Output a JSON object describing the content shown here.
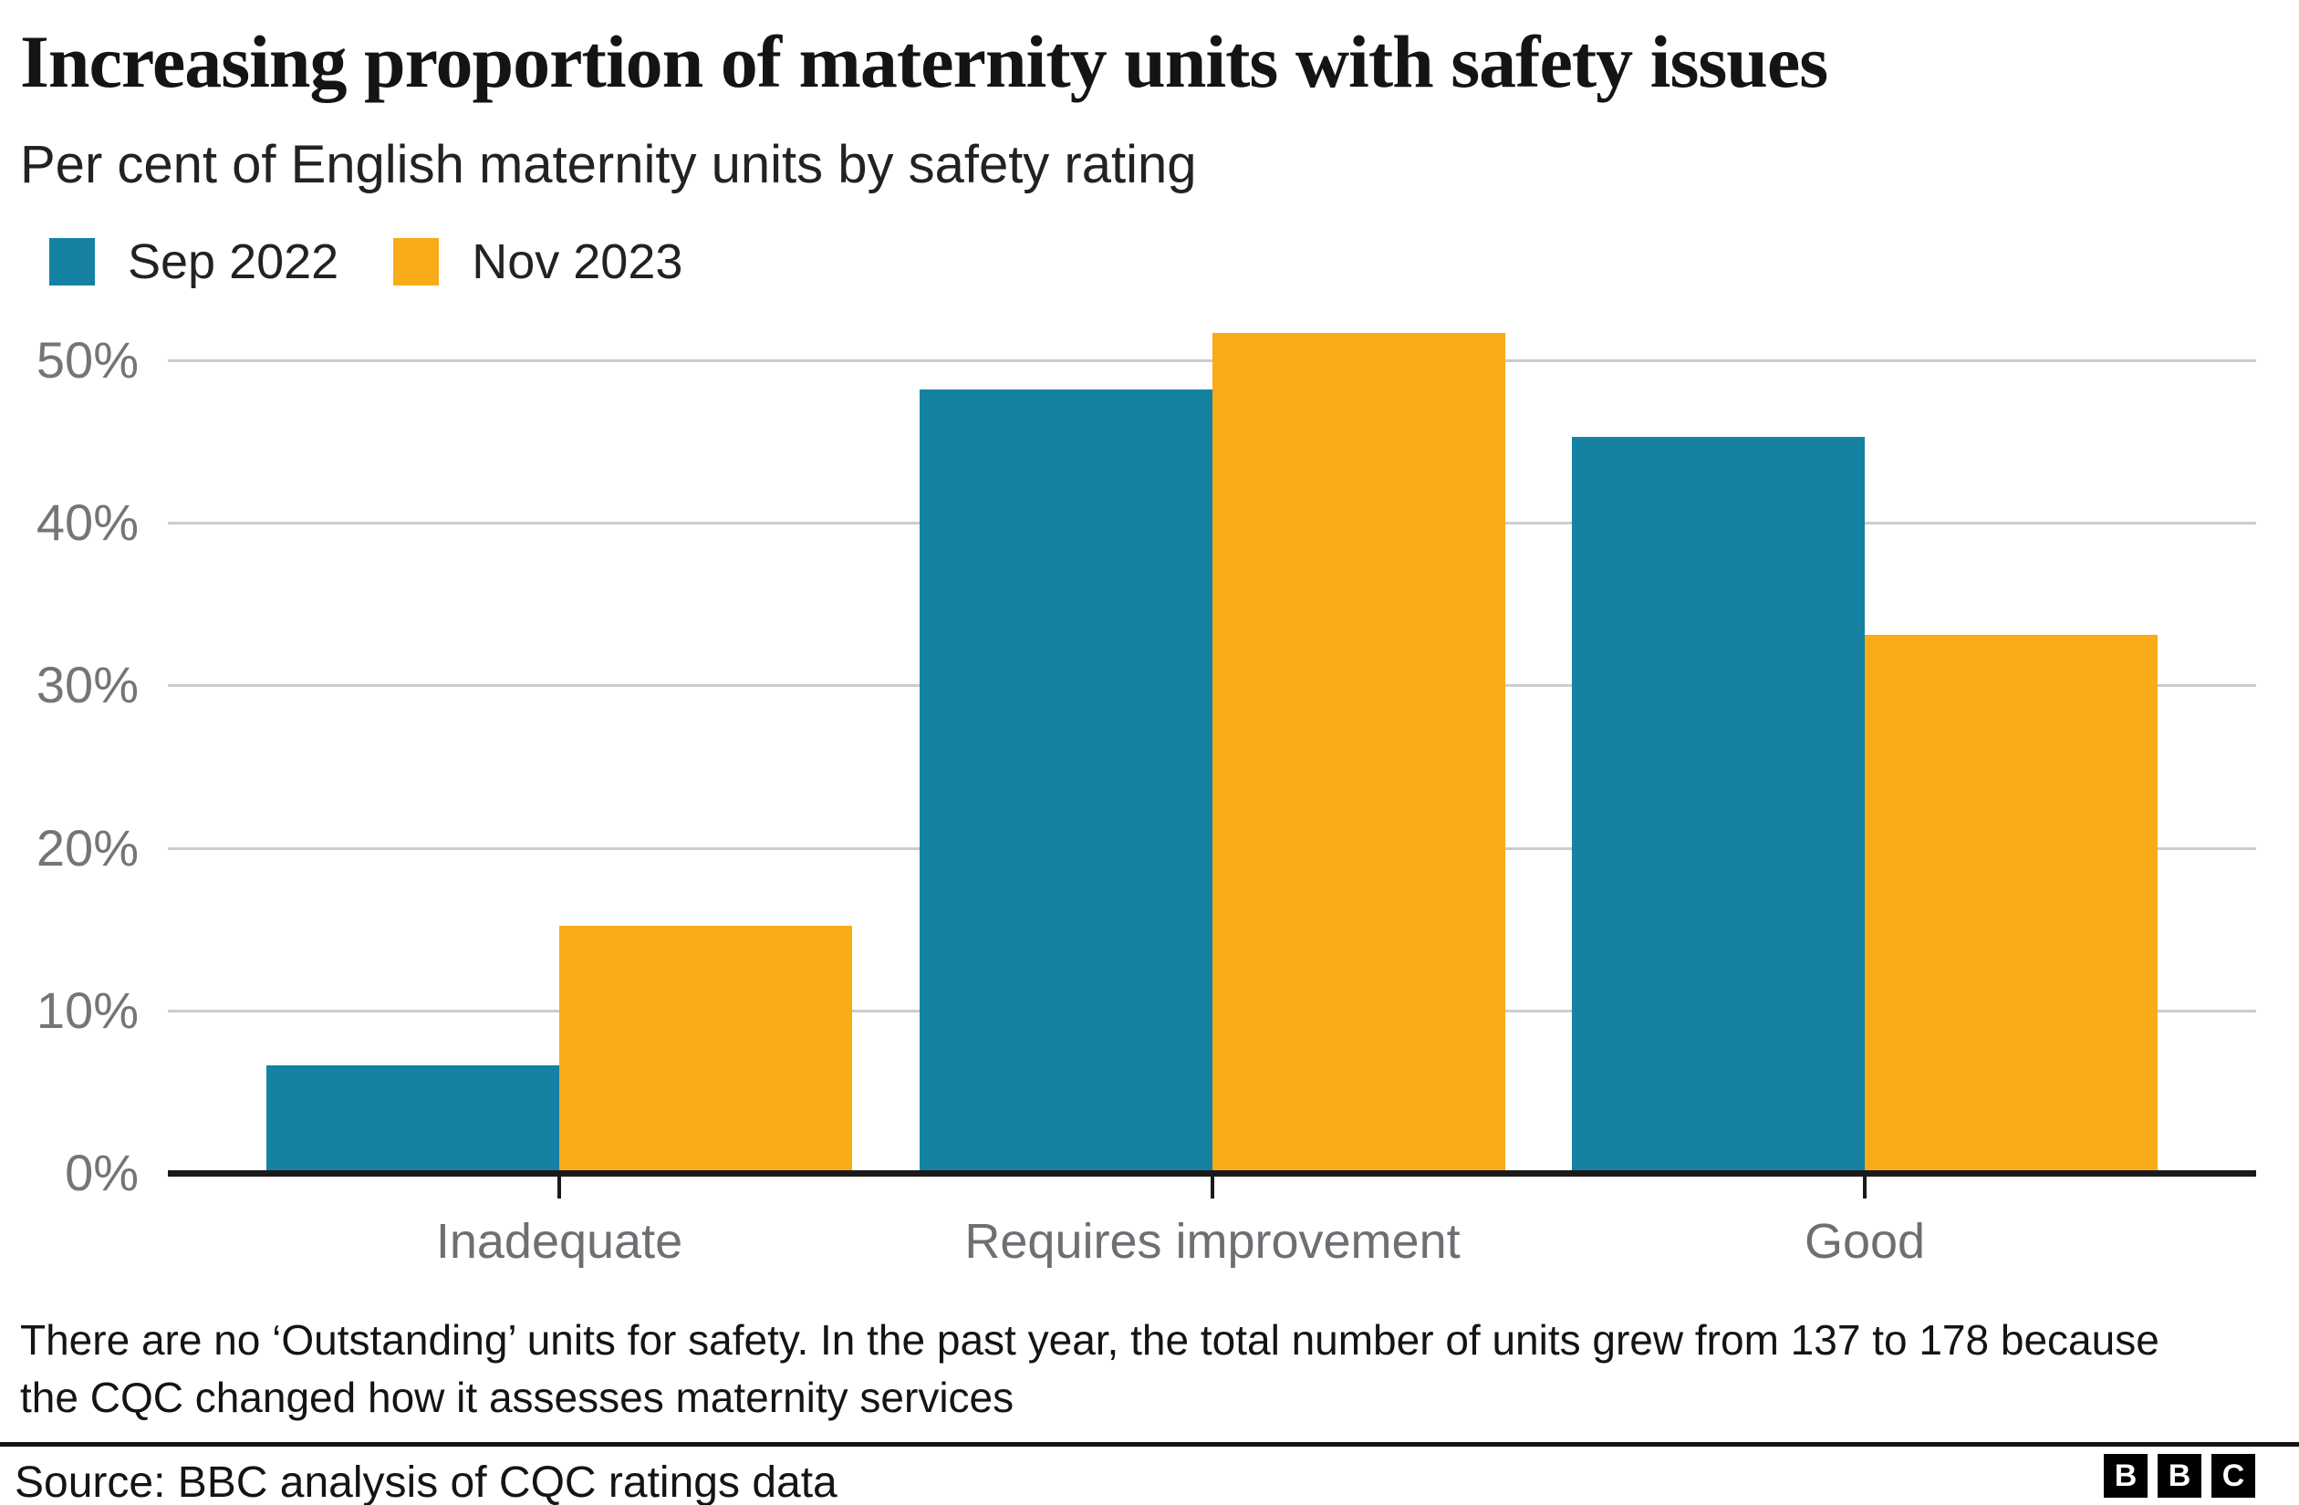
{
  "header": {
    "title": "Increasing proportion of maternity units with safety issues",
    "subtitle": "Per cent of English maternity units by safety rating"
  },
  "chart_data": {
    "type": "bar",
    "categories": [
      "Inadequate",
      "Requires improvement",
      "Good"
    ],
    "series": [
      {
        "name": "Sep 2022",
        "color": "#1581a3",
        "values": [
          6.6,
          48.2,
          45.3
        ]
      },
      {
        "name": "Nov 2023",
        "color": "#f9ab18",
        "values": [
          15.2,
          51.7,
          33.1
        ]
      }
    ],
    "yticks": [
      {
        "value": 0,
        "label": "0%"
      },
      {
        "value": 10,
        "label": "10%"
      },
      {
        "value": 20,
        "label": "20%"
      },
      {
        "value": 30,
        "label": "30%"
      },
      {
        "value": 40,
        "label": "40%"
      },
      {
        "value": 50,
        "label": "50%"
      }
    ],
    "ylim": [
      0,
      53
    ],
    "grid": "horizontal",
    "legend_position": "top-left",
    "title": "Increasing proportion of maternity units with safety issues",
    "xlabel": "",
    "ylabel": "Per cent of English maternity units by safety rating"
  },
  "footnote": "There are no ‘Outstanding’ units for safety. In the past year, the total number of units grew from 137 to 178 because the CQC changed how it assesses maternity services",
  "source": {
    "label": "Source: BBC analysis of CQC ratings data"
  },
  "logo": {
    "letters": [
      "B",
      "B",
      "C"
    ]
  },
  "colors": {
    "axis": "#1a1a1a",
    "gridline": "#cccccc",
    "tick_label": "#757575",
    "category_label": "#6e6e73",
    "series_1": "#1581a3",
    "series_2": "#f9ab18"
  }
}
